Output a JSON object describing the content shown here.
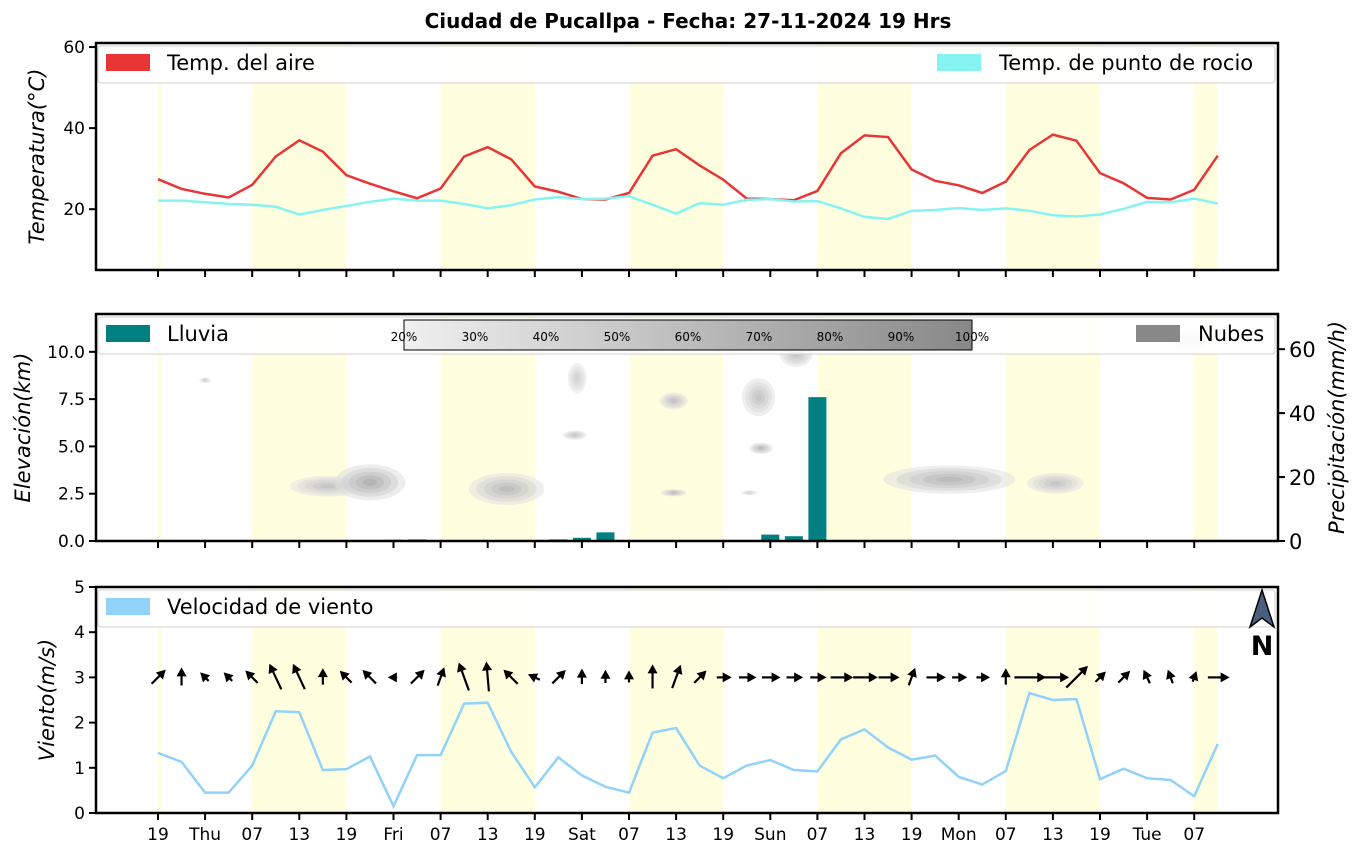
{
  "title": "Ciudad de Pucallpa   -   Fecha: 27-11-2024 19 Hrs",
  "colors": {
    "air": "#e83535",
    "dew": "#86f3f3",
    "rain": "#008080",
    "cloud": "#888888",
    "wind": "#91d2fa",
    "daylight": "#ffffe0"
  },
  "x_tick_labels": [
    "19",
    "Thu",
    "07",
    "13",
    "19",
    "Fri",
    "07",
    "13",
    "19",
    "Sat",
    "07",
    "13",
    "19",
    "Sun",
    "07",
    "13",
    "19",
    "Mon",
    "07",
    "13",
    "19",
    "Tue",
    "07"
  ],
  "chart_data": [
    {
      "type": "line",
      "ylabel": "Temperatura(°C)",
      "ylim": [
        5,
        61
      ],
      "yticks": [
        20,
        40,
        60
      ],
      "series": [
        {
          "name": "Temp. del aire",
          "color": "#e83535",
          "values": [
            27.4,
            25.0,
            23.8,
            22.9,
            26.0,
            33.0,
            37.0,
            34.2,
            28.4,
            26.3,
            24.4,
            22.7,
            25.1,
            33.0,
            35.3,
            32.3,
            25.6,
            24.3,
            22.5,
            22.4,
            24.0,
            33.2,
            34.8,
            30.8,
            27.3,
            22.6,
            22.5,
            22.2,
            24.5,
            33.8,
            38.2,
            37.8,
            29.8,
            27.0,
            25.9,
            24.0,
            26.8,
            34.6,
            38.4,
            36.9,
            28.9,
            26.4,
            22.8,
            22.4,
            24.8,
            33.2
          ]
        },
        {
          "name": "Temp. de punto de rocio",
          "color": "#86f3f3",
          "values": [
            22.1,
            22.1,
            21.7,
            21.3,
            21.1,
            20.6,
            18.7,
            19.8,
            20.8,
            21.8,
            22.6,
            22.1,
            22.1,
            21.3,
            20.2,
            21.0,
            22.4,
            23.0,
            22.5,
            22.6,
            23.2,
            21.1,
            18.9,
            21.5,
            21.1,
            22.3,
            22.5,
            21.9,
            22.0,
            20.2,
            18.1,
            17.6,
            19.6,
            19.8,
            20.3,
            19.8,
            20.2,
            19.6,
            18.5,
            18.2,
            18.7,
            20.1,
            21.8,
            21.7,
            22.6,
            21.4
          ]
        }
      ]
    },
    {
      "type": "bar",
      "ylabel": "Elevación(km)",
      "y2label": "Precipitación(mm/h)",
      "ylim": [
        0,
        12
      ],
      "yticks": [
        0.0,
        2.5,
        5.0,
        7.5,
        10.0
      ],
      "ytick_labels": [
        "0.0",
        "2.5",
        "5.0",
        "7.5",
        "10.0"
      ],
      "y2lim": [
        0,
        71
      ],
      "y2ticks": [
        0,
        20,
        40,
        60
      ],
      "series": [
        {
          "name": "Lluvia",
          "color": "#008080",
          "values": [
            0,
            0,
            0,
            0,
            0,
            0,
            0,
            0,
            0,
            0,
            0.4,
            0.5,
            0,
            0,
            0,
            0,
            0,
            0.5,
            1.0,
            2.7,
            0,
            0,
            0,
            0,
            0,
            0,
            2.0,
            1.5,
            45.0,
            0,
            0,
            0,
            0,
            0,
            0,
            0,
            0,
            0,
            0,
            0,
            0,
            0,
            0,
            0,
            0,
            0
          ]
        }
      ],
      "cloud_legend": "Nubes",
      "cloud_scale": [
        "20%",
        "30%",
        "40%",
        "50%",
        "60%",
        "70%",
        "80%",
        "90%",
        "100%"
      ],
      "clouds": [
        {
          "x": 2.0,
          "y": 8.5,
          "rx": 0.25,
          "ry": 0.15,
          "v": 0.25
        },
        {
          "x": 7.2,
          "y": 2.9,
          "rx": 1.6,
          "ry": 0.55,
          "v": 0.45
        },
        {
          "x": 9.0,
          "y": 3.1,
          "rx": 1.5,
          "ry": 0.95,
          "v": 0.7
        },
        {
          "x": 14.8,
          "y": 2.75,
          "rx": 1.6,
          "ry": 0.85,
          "v": 0.55
        },
        {
          "x": 17.8,
          "y": 8.6,
          "rx": 0.4,
          "ry": 0.8,
          "v": 0.3
        },
        {
          "x": 17.7,
          "y": 5.6,
          "rx": 0.5,
          "ry": 0.25,
          "v": 0.4
        },
        {
          "x": 21.9,
          "y": 7.4,
          "rx": 0.6,
          "ry": 0.45,
          "v": 0.5
        },
        {
          "x": 21.9,
          "y": 2.55,
          "rx": 0.55,
          "ry": 0.2,
          "v": 0.5
        },
        {
          "x": 25.1,
          "y": 2.55,
          "rx": 0.35,
          "ry": 0.12,
          "v": 0.2
        },
        {
          "x": 25.5,
          "y": 7.6,
          "rx": 0.7,
          "ry": 1.0,
          "v": 0.45
        },
        {
          "x": 25.6,
          "y": 4.9,
          "rx": 0.5,
          "ry": 0.3,
          "v": 0.55
        },
        {
          "x": 27.1,
          "y": 9.9,
          "rx": 0.7,
          "ry": 0.7,
          "v": 0.5
        },
        {
          "x": 33.6,
          "y": 3.25,
          "rx": 2.8,
          "ry": 0.75,
          "v": 0.6
        },
        {
          "x": 38.1,
          "y": 3.05,
          "rx": 1.2,
          "ry": 0.55,
          "v": 0.45
        },
        {
          "x": 43.8,
          "y": 10.6,
          "rx": 0.8,
          "ry": 0.5,
          "v": 0.2
        }
      ]
    },
    {
      "type": "line",
      "ylabel": "Viento(m/s)",
      "ylim": [
        0,
        5
      ],
      "yticks": [
        0,
        1,
        2,
        3,
        4,
        5
      ],
      "series": [
        {
          "name": "Velocidad de viento",
          "color": "#91d2fa",
          "values": [
            1.33,
            1.13,
            0.45,
            0.45,
            1.05,
            2.25,
            2.23,
            0.95,
            0.97,
            1.25,
            0.15,
            1.28,
            1.28,
            2.42,
            2.44,
            1.35,
            0.57,
            1.23,
            0.83,
            0.58,
            0.45,
            1.78,
            1.88,
            1.05,
            0.77,
            1.05,
            1.17,
            0.95,
            0.92,
            1.63,
            1.85,
            1.45,
            1.18,
            1.27,
            0.8,
            0.63,
            0.93,
            2.65,
            2.5,
            2.52,
            0.75,
            0.98,
            0.77,
            0.73,
            0.37,
            1.53
          ]
        }
      ],
      "wind_direction_deg": [
        225,
        180,
        135,
        135,
        135,
        155,
        155,
        180,
        135,
        135,
        90,
        225,
        200,
        160,
        175,
        135,
        115,
        225,
        180,
        180,
        180,
        180,
        200,
        225,
        270,
        270,
        270,
        270,
        270,
        270,
        270,
        270,
        200,
        270,
        270,
        270,
        180,
        270,
        270,
        225,
        225,
        225,
        155,
        160,
        200,
        270
      ],
      "compass_label": "N"
    }
  ]
}
